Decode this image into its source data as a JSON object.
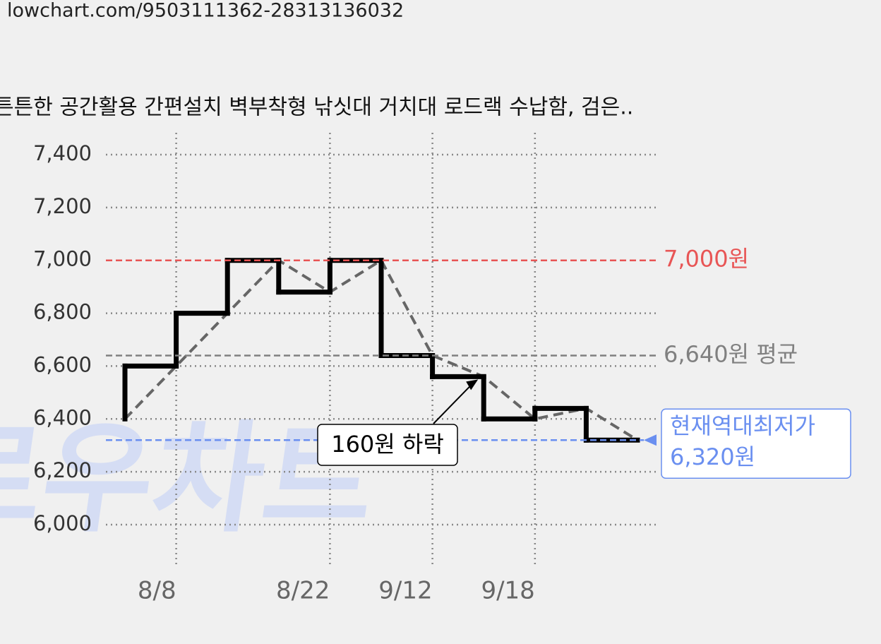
{
  "header": {
    "url": "lowchart.com/9503111362-28313136032"
  },
  "chart_data": {
    "type": "step-line",
    "title": "튼튼한 공간활용 간편설치 벽부착형 낚싯대 거치대 로드랙 수납함, 검은..",
    "watermark": "로우차트",
    "categories": [
      null,
      "8/8",
      null,
      null,
      "8/22",
      null,
      "9/12",
      null,
      "9/18",
      null,
      null
    ],
    "series": [
      {
        "color": "#000000",
        "trend_color": "#666666",
        "values": [
          6400,
          6600,
          6800,
          7000,
          6880,
          7000,
          6640,
          6560,
          6400,
          6440,
          6320
        ]
      }
    ],
    "ylim": [
      6000,
      7400
    ],
    "yticks": [
      {
        "value": 6000,
        "label": "6,000"
      },
      {
        "value": 6200,
        "label": "6,200"
      },
      {
        "value": 6400,
        "label": "6,400"
      },
      {
        "value": 6600,
        "label": "6,600"
      },
      {
        "value": 6800,
        "label": "6,800"
      },
      {
        "value": 7000,
        "label": "7,000"
      },
      {
        "value": 7200,
        "label": "7,200"
      },
      {
        "value": 7400,
        "label": "7,400"
      }
    ],
    "grid": true,
    "references": [
      {
        "value": 7000,
        "label": "7,000원",
        "color": "#e85555"
      },
      {
        "value": 6640,
        "label": "6,640원 평균",
        "color": "#808080"
      },
      {
        "value": 6320,
        "label": [
          "현재역대최저가",
          "6,320원"
        ],
        "color": "#6a8ff0"
      }
    ],
    "annotation": "160원 하락"
  }
}
